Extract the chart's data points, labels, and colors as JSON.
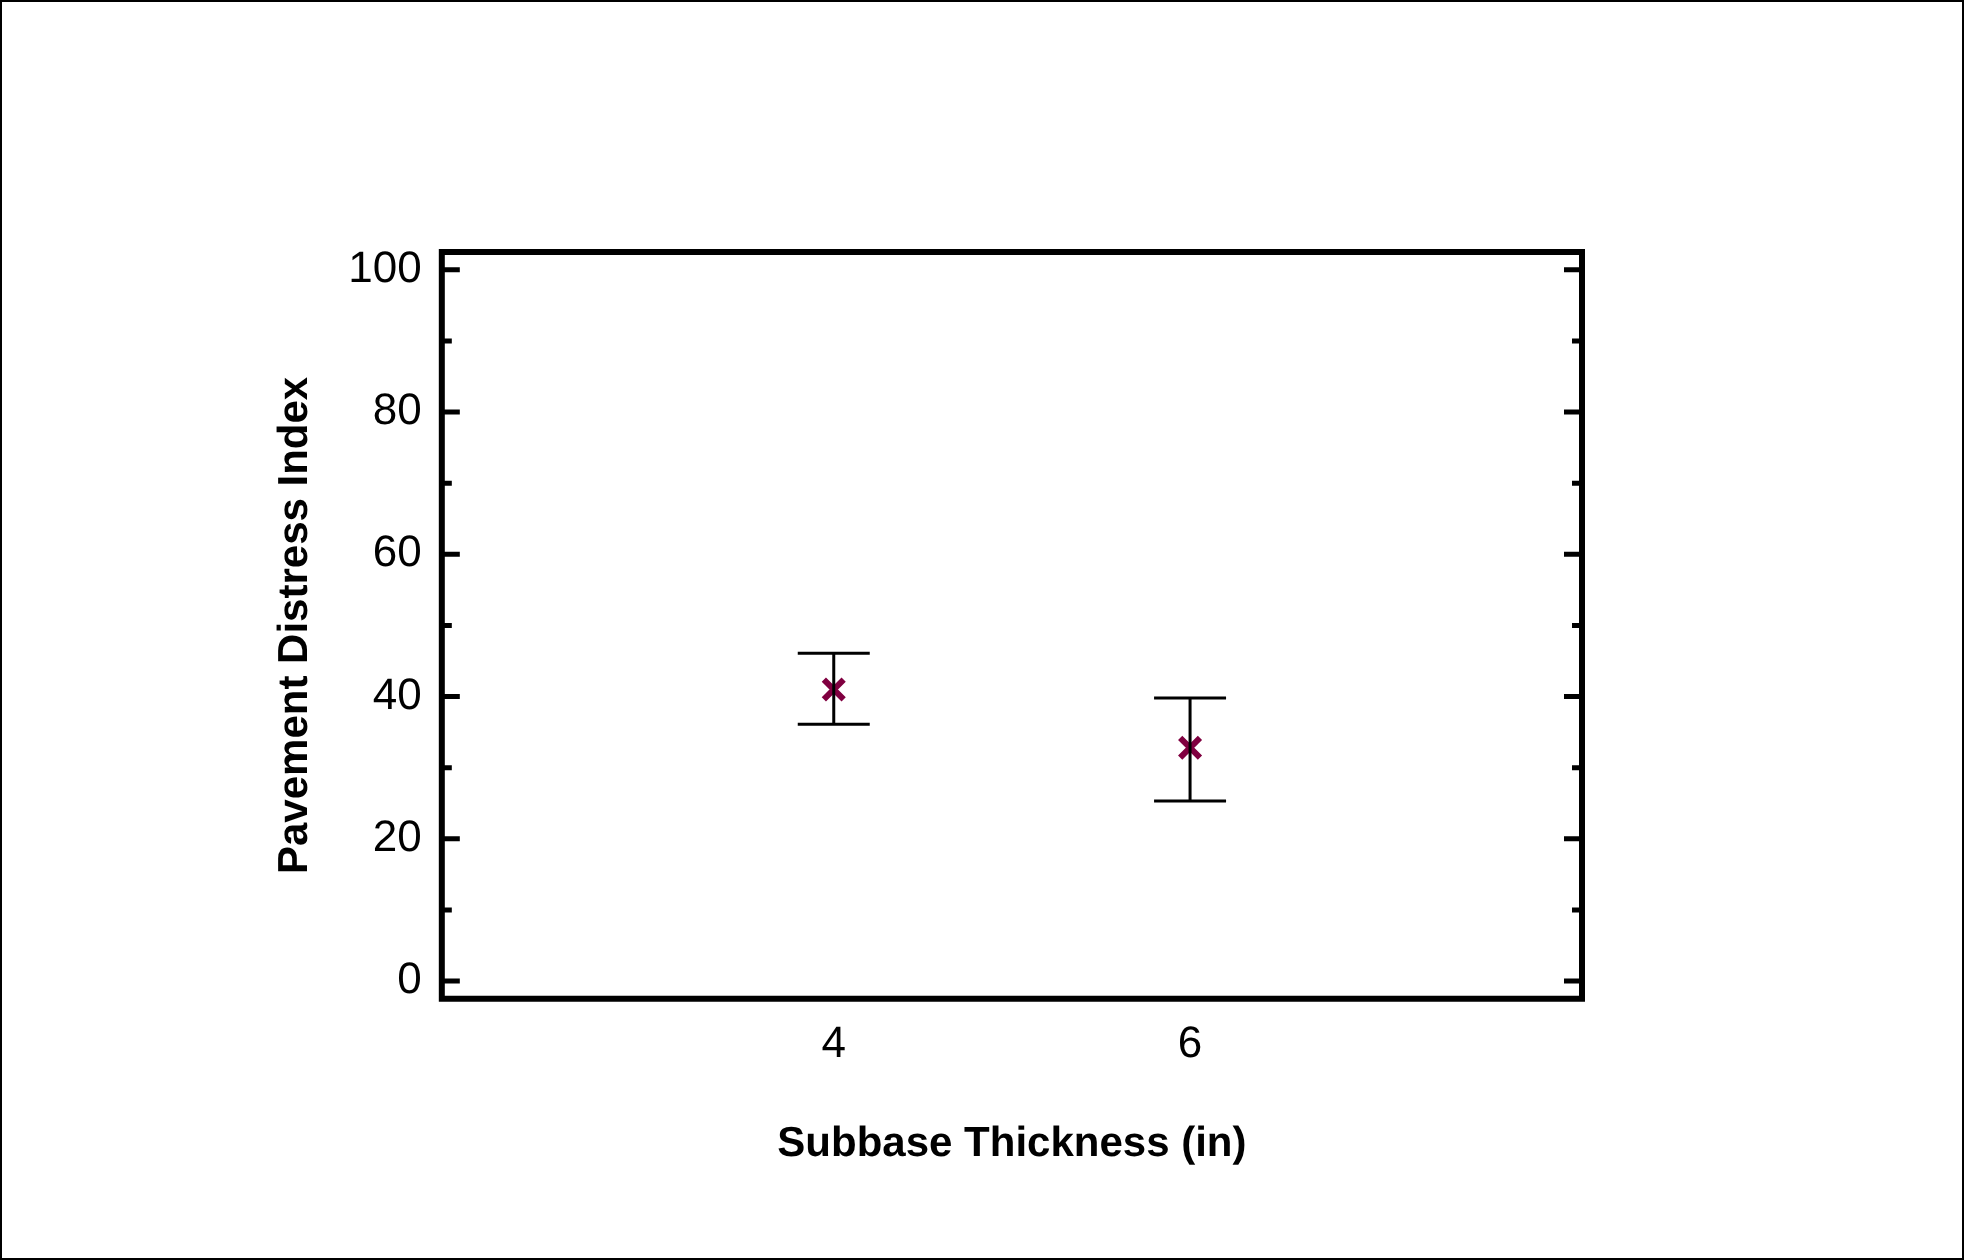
{
  "chart_data": {
    "type": "scatter",
    "xlabel": "Subbase Thickness (in)",
    "ylabel": "Pavement Distress Index",
    "x": [
      4,
      6
    ],
    "series": [
      {
        "color": "#800040",
        "values": [
          41,
          32.8
        ],
        "errors": [
          [
            36.1,
            46.1
          ],
          [
            25.3,
            39.8
          ]
        ]
      }
    ],
    "xlim": [
      1.8,
      8.2
    ],
    "xticks": [
      4,
      6
    ],
    "ylim": [
      -2.5,
      102.5
    ],
    "yticks": [
      0,
      {
        "value": 10,
        "label": null
      },
      20,
      {
        "value": 30,
        "label": null
      },
      40,
      {
        "value": 50,
        "label": null
      },
      60,
      {
        "value": 70,
        "label": null
      },
      80,
      {
        "value": 90,
        "label": null
      },
      100
    ],
    "grid": false,
    "legend": false,
    "marker": "cross"
  }
}
